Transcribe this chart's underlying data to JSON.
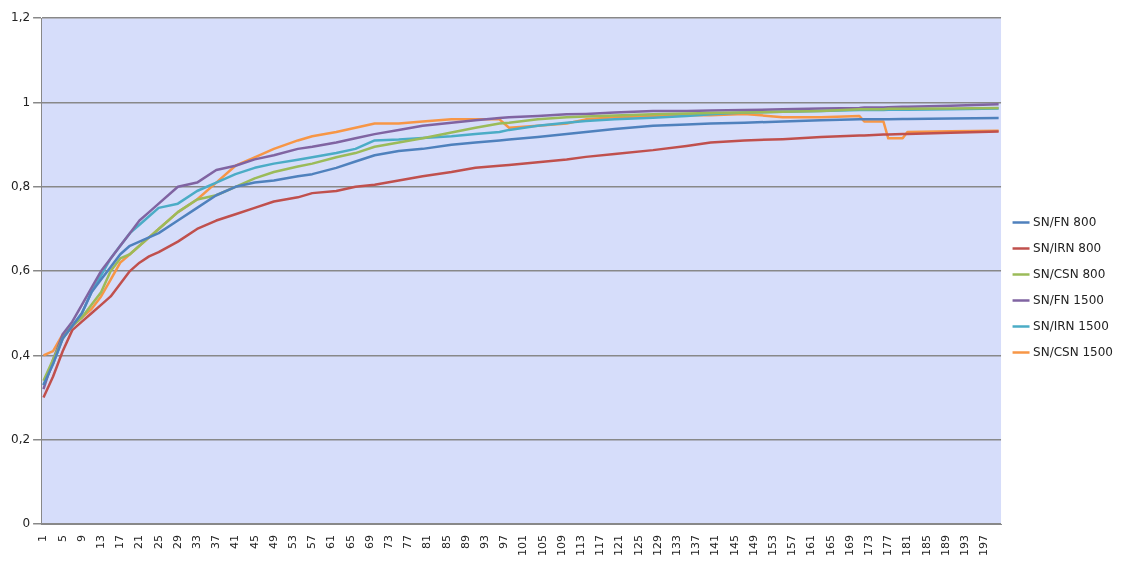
{
  "chart_data": {
    "type": "line",
    "x": [
      1,
      3,
      5,
      7,
      9,
      11,
      13,
      15,
      17,
      19,
      21,
      23,
      25,
      29,
      33,
      37,
      41,
      45,
      49,
      54,
      57,
      62,
      66,
      70,
      75,
      80,
      86,
      91,
      96,
      98,
      104,
      110,
      114,
      120,
      128,
      135,
      140,
      147,
      155,
      163,
      171,
      172,
      176,
      177,
      180,
      181,
      190,
      200
    ],
    "xlim": [
      0.5,
      200.5
    ],
    "xticks": [
      1,
      5,
      9,
      13,
      17,
      21,
      25,
      29,
      33,
      37,
      41,
      45,
      49,
      53,
      57,
      61,
      65,
      69,
      73,
      77,
      81,
      85,
      89,
      93,
      97,
      101,
      105,
      109,
      113,
      117,
      121,
      125,
      129,
      133,
      137,
      141,
      145,
      149,
      153,
      157,
      161,
      165,
      169,
      173,
      177,
      181,
      185,
      189,
      193,
      197
    ],
    "ylim": [
      0,
      1.2
    ],
    "yticks": [
      {
        "value": 0,
        "label": "0"
      },
      {
        "value": 0.2,
        "label": "0,2"
      },
      {
        "value": 0.4,
        "label": "0,4"
      },
      {
        "value": 0.6,
        "label": "0,6"
      },
      {
        "value": 0.8,
        "label": "0,8"
      },
      {
        "value": 1,
        "label": "1"
      },
      {
        "value": 1.2,
        "label": "1,2"
      }
    ],
    "grid": "y",
    "legend": "right",
    "marker": "none",
    "line_style": "solid",
    "series": [
      {
        "name": "SN/FN 800",
        "color": "#4f81bd",
        "values": [
          0.33,
          0.38,
          0.44,
          0.47,
          0.5,
          0.55,
          0.58,
          0.61,
          0.64,
          0.66,
          0.67,
          0.68,
          0.69,
          0.72,
          0.75,
          0.78,
          0.8,
          0.81,
          0.815,
          0.825,
          0.83,
          0.845,
          0.86,
          0.875,
          0.885,
          0.89,
          0.9,
          0.905,
          0.91,
          0.912,
          0.918,
          0.925,
          0.93,
          0.937,
          0.945,
          0.948,
          0.95,
          0.952,
          0.955,
          0.958,
          0.96,
          0.96,
          0.96,
          0.96,
          0.961,
          0.961,
          0.962,
          0.963
        ]
      },
      {
        "name": "SN/IRN 800",
        "color": "#c0504d",
        "values": [
          0.3,
          0.35,
          0.41,
          0.46,
          0.48,
          0.5,
          0.52,
          0.54,
          0.57,
          0.6,
          0.62,
          0.635,
          0.645,
          0.67,
          0.7,
          0.72,
          0.735,
          0.75,
          0.765,
          0.775,
          0.785,
          0.79,
          0.8,
          0.805,
          0.815,
          0.825,
          0.835,
          0.845,
          0.85,
          0.852,
          0.858,
          0.865,
          0.871,
          0.878,
          0.887,
          0.897,
          0.905,
          0.91,
          0.913,
          0.918,
          0.922,
          0.922,
          0.924,
          0.924,
          0.925,
          0.925,
          0.928,
          0.931
        ]
      },
      {
        "name": "SN/CSN 800",
        "color": "#9bbb59",
        "values": [
          0.34,
          0.39,
          0.44,
          0.47,
          0.49,
          0.52,
          0.55,
          0.6,
          0.63,
          0.64,
          0.66,
          0.68,
          0.7,
          0.74,
          0.77,
          0.78,
          0.8,
          0.82,
          0.835,
          0.848,
          0.855,
          0.87,
          0.88,
          0.895,
          0.905,
          0.915,
          0.929,
          0.94,
          0.95,
          0.952,
          0.96,
          0.965,
          0.967,
          0.969,
          0.972,
          0.974,
          0.975,
          0.976,
          0.978,
          0.98,
          0.984,
          0.984,
          0.984,
          0.985,
          0.985,
          0.985,
          0.986,
          0.987
        ]
      },
      {
        "name": "SN/FN 1500",
        "color": "#8064a2",
        "values": [
          0.32,
          0.39,
          0.45,
          0.48,
          0.52,
          0.56,
          0.6,
          0.63,
          0.66,
          0.69,
          0.72,
          0.74,
          0.76,
          0.8,
          0.81,
          0.84,
          0.85,
          0.865,
          0.875,
          0.89,
          0.895,
          0.905,
          0.915,
          0.925,
          0.935,
          0.945,
          0.952,
          0.958,
          0.963,
          0.965,
          0.968,
          0.972,
          0.973,
          0.976,
          0.98,
          0.98,
          0.981,
          0.982,
          0.984,
          0.986,
          0.987,
          0.988,
          0.988,
          0.989,
          0.99,
          0.99,
          0.992,
          0.996
        ]
      },
      {
        "name": "SN/IRN 1500",
        "color": "#4bacc6",
        "values": [
          0.33,
          0.38,
          0.44,
          0.47,
          0.5,
          0.55,
          0.59,
          0.63,
          0.66,
          0.69,
          0.71,
          0.73,
          0.75,
          0.76,
          0.79,
          0.81,
          0.83,
          0.845,
          0.855,
          0.864,
          0.87,
          0.88,
          0.89,
          0.91,
          0.912,
          0.916,
          0.92,
          0.925,
          0.93,
          0.935,
          0.945,
          0.952,
          0.956,
          0.96,
          0.964,
          0.968,
          0.972,
          0.976,
          0.978,
          0.98,
          0.982,
          0.982,
          0.982,
          0.983,
          0.983,
          0.983,
          0.984,
          0.986
        ]
      },
      {
        "name": "SN/CSN 1500",
        "color": "#f79646",
        "values": [
          0.4,
          0.41,
          0.45,
          0.47,
          0.49,
          0.51,
          0.54,
          0.58,
          0.62,
          0.64,
          0.66,
          0.68,
          0.7,
          0.74,
          0.77,
          0.81,
          0.85,
          0.87,
          0.89,
          0.91,
          0.92,
          0.93,
          0.94,
          0.95,
          0.95,
          0.955,
          0.96,
          0.96,
          0.96,
          0.94,
          0.945,
          0.95,
          0.96,
          0.965,
          0.968,
          0.97,
          0.97,
          0.973,
          0.965,
          0.965,
          0.968,
          0.955,
          0.955,
          0.915,
          0.915,
          0.93,
          0.932,
          0.933
        ]
      }
    ]
  }
}
